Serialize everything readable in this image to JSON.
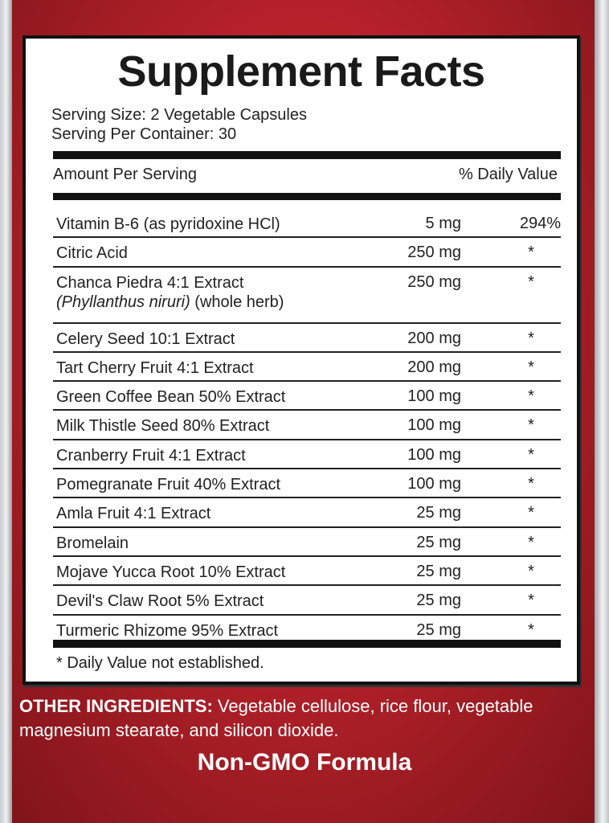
{
  "title": "Supplement Facts",
  "serving_size": "Serving Size: 2 Vegetable Capsules",
  "servings_per_container": "Serving Per Container: 30",
  "header": {
    "amount": "Amount Per Serving",
    "dv": "% Daily Value"
  },
  "rows": [
    {
      "name": "Vitamin B-6 (as pyridoxine HCl)",
      "amount": "5 mg",
      "dv": "294%"
    },
    {
      "name": "Citric Acid",
      "amount": "250 mg",
      "dv": "*"
    },
    {
      "name": "Chanca Piedra 4:1 Extract",
      "sub_italic": "(Phyllanthus niruri)",
      "sub": " (whole herb)",
      "amount": "250 mg",
      "dv": "*"
    },
    {
      "name": "Celery Seed 10:1 Extract",
      "amount": "200 mg",
      "dv": "*"
    },
    {
      "name": "Tart Cherry Fruit 4:1 Extract",
      "amount": "200 mg",
      "dv": "*"
    },
    {
      "name": "Green Coffee Bean 50% Extract",
      "amount": "100 mg",
      "dv": "*"
    },
    {
      "name": "Milk Thistle Seed 80% Extract",
      "amount": "100 mg",
      "dv": "*"
    },
    {
      "name": "Cranberry Fruit 4:1 Extract",
      "amount": "100 mg",
      "dv": "*"
    },
    {
      "name": "Pomegranate Fruit 40% Extract",
      "amount": "100 mg",
      "dv": "*"
    },
    {
      "name": "Amla Fruit 4:1 Extract",
      "amount": "25 mg",
      "dv": "*"
    },
    {
      "name": "Bromelain",
      "amount": "25 mg",
      "dv": "*"
    },
    {
      "name": "Mojave Yucca Root 10% Extract",
      "amount": "25 mg",
      "dv": "*"
    },
    {
      "name": "Devil's Claw Root 5% Extract",
      "amount": "25 mg",
      "dv": "*"
    },
    {
      "name": "Turmeric Rhizome 95% Extract",
      "amount": "25 mg",
      "dv": "*"
    }
  ],
  "footnote": "* Daily Value not established.",
  "other_ingredients": {
    "label": "OTHER INGREDIENTS:",
    "text": " Vegetable cellulose, rice flour, vegetable magnesium stearate, and silicon dioxide."
  },
  "badge": "Non-GMO Formula",
  "colors": {
    "background_red": "#b5212a",
    "panel": "#ffffff",
    "text": "#222222"
  }
}
